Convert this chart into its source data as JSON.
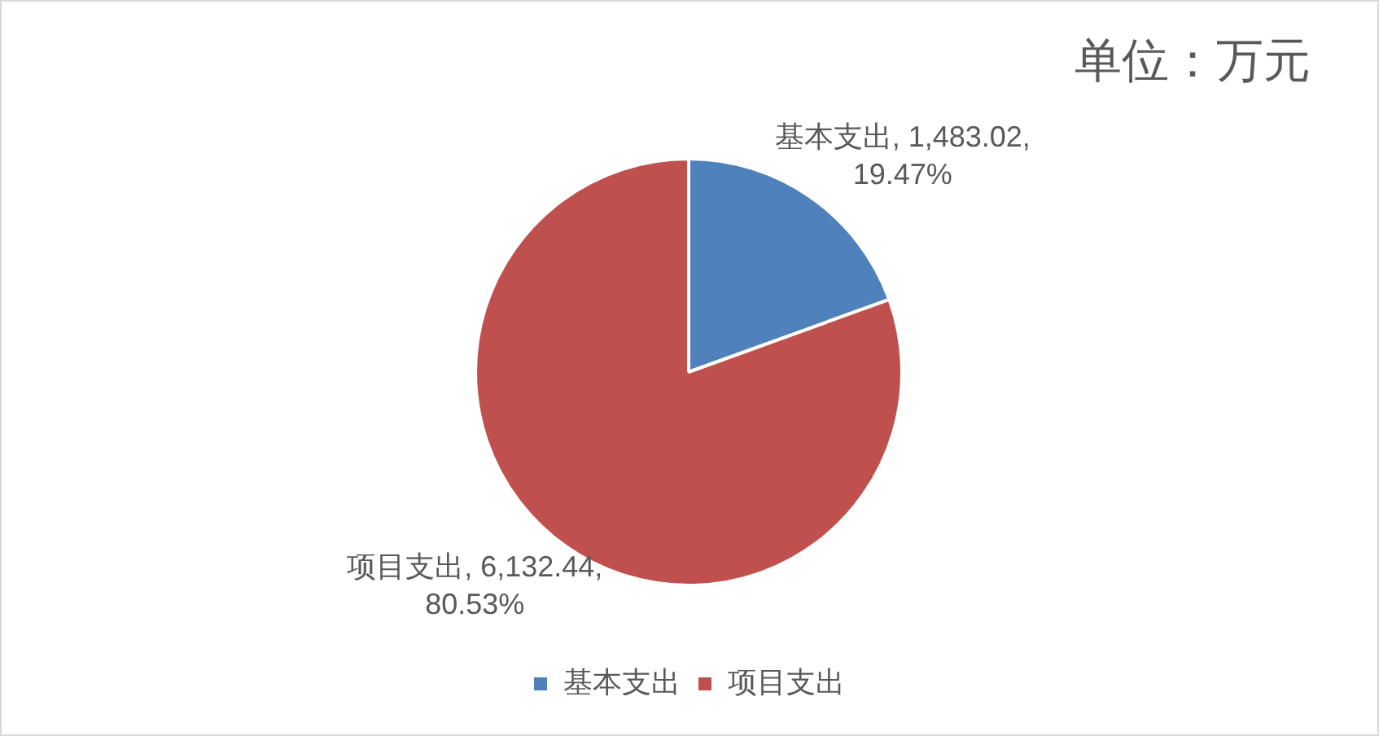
{
  "chart_data": {
    "type": "pie",
    "title": "单位：万元",
    "categories": [
      "基本支出",
      "项目支出"
    ],
    "values": [
      1483.02,
      6132.44
    ],
    "colors": [
      "#4f81bd",
      "#c0504d"
    ],
    "value_labels": [
      "基本支出, 1,483.02, 19.47%",
      "项目支出, 6,132.44, 80.53%"
    ],
    "legend": "bottom"
  }
}
